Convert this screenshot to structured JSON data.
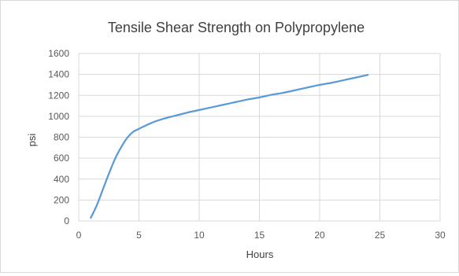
{
  "chart_data": {
    "type": "line",
    "title": "Tensile Shear Strength on Polypropylene",
    "xlabel": "Hours",
    "ylabel": "psi",
    "xlim": [
      0,
      30
    ],
    "ylim": [
      0,
      1600
    ],
    "x_ticks": [
      0,
      5,
      10,
      15,
      20,
      25,
      30
    ],
    "y_ticks": [
      0,
      200,
      400,
      600,
      800,
      1000,
      1200,
      1400,
      1600
    ],
    "grid": true,
    "legend": "none",
    "series": [
      {
        "color": "#5b9bd5",
        "x": [
          1,
          1.5,
          2,
          2.5,
          3,
          3.5,
          4,
          4.5,
          5,
          6,
          7,
          8,
          9,
          10,
          11,
          12,
          13,
          14,
          15,
          16,
          17,
          18,
          19,
          20,
          21,
          22,
          23,
          24
        ],
        "y": [
          30,
          150,
          300,
          450,
          590,
          700,
          790,
          850,
          880,
          935,
          975,
          1005,
          1035,
          1060,
          1085,
          1110,
          1135,
          1160,
          1180,
          1205,
          1225,
          1250,
          1275,
          1300,
          1320,
          1345,
          1370,
          1395
        ]
      }
    ]
  }
}
